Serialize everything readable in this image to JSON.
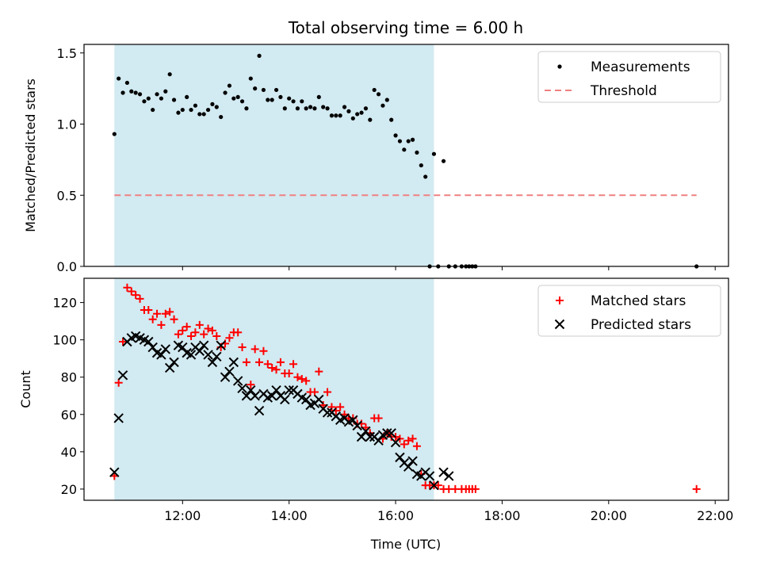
{
  "chart_data": {
    "title": "Total observing time = 6.00 h",
    "xlabel": "Time (UTC)",
    "x_unit": "hours (UTC)",
    "xlim": [
      10.15,
      22.25
    ],
    "xticks": [
      {
        "value": 12,
        "label": "12:00"
      },
      {
        "value": 14,
        "label": "14:00"
      },
      {
        "value": 16,
        "label": "16:00"
      },
      {
        "value": 18,
        "label": "18:00"
      },
      {
        "value": 20,
        "label": "20:00"
      },
      {
        "value": 22,
        "label": "22:00"
      }
    ],
    "observing_window": {
      "start": 10.72,
      "end": 16.72,
      "color": "#add8e6"
    },
    "panels": [
      {
        "type": "scatter",
        "ylabel": "Matched/Predicted stars",
        "ylim": [
          0,
          1.56
        ],
        "yticks": [
          {
            "value": 0,
            "label": "0.0"
          },
          {
            "value": 0.5,
            "label": "0.5"
          },
          {
            "value": 1.0,
            "label": "1.0"
          },
          {
            "value": 1.5,
            "label": "1.5"
          }
        ],
        "legend_position": "top-right",
        "series": [
          {
            "name": "Measurements",
            "marker": "dot",
            "color": "#000000",
            "x": [
              10.72,
              10.8,
              10.88,
              10.96,
              11.04,
              11.12,
              11.2,
              11.28,
              11.36,
              11.44,
              11.52,
              11.6,
              11.68,
              11.76,
              11.84,
              11.92,
              12.0,
              12.08,
              12.16,
              12.24,
              12.32,
              12.4,
              12.48,
              12.56,
              12.64,
              12.72,
              12.8,
              12.88,
              12.96,
              13.04,
              13.12,
              13.2,
              13.28,
              13.36,
              13.44,
              13.52,
              13.6,
              13.68,
              13.76,
              13.84,
              13.92,
              14.0,
              14.08,
              14.16,
              14.24,
              14.32,
              14.4,
              14.48,
              14.56,
              14.64,
              14.72,
              14.8,
              14.88,
              14.96,
              15.04,
              15.12,
              15.2,
              15.28,
              15.36,
              15.44,
              15.52,
              15.6,
              15.68,
              15.76,
              15.84,
              15.92,
              16.0,
              16.08,
              16.16,
              16.24,
              16.32,
              16.4,
              16.48,
              16.56,
              16.64,
              16.72,
              16.8,
              16.9,
              17.0,
              17.12,
              17.24,
              17.32,
              17.38,
              17.44,
              17.5,
              21.65
            ],
            "y": [
              0.93,
              1.32,
              1.22,
              1.29,
              1.23,
              1.22,
              1.21,
              1.16,
              1.18,
              1.1,
              1.21,
              1.18,
              1.23,
              1.35,
              1.17,
              1.08,
              1.1,
              1.19,
              1.1,
              1.13,
              1.07,
              1.07,
              1.1,
              1.14,
              1.12,
              1.05,
              1.22,
              1.27,
              1.18,
              1.19,
              1.16,
              1.11,
              1.32,
              1.25,
              1.48,
              1.24,
              1.17,
              1.17,
              1.24,
              1.19,
              1.11,
              1.18,
              1.16,
              1.11,
              1.16,
              1.11,
              1.12,
              1.11,
              1.19,
              1.12,
              1.11,
              1.06,
              1.06,
              1.06,
              1.12,
              1.09,
              1.04,
              1.07,
              1.08,
              1.11,
              1.03,
              1.24,
              1.21,
              1.13,
              1.17,
              1.03,
              0.92,
              0.88,
              0.82,
              0.88,
              0.89,
              0.8,
              0.71,
              0.63,
              0.0,
              0.79,
              0.0,
              0.74,
              0.0,
              0.0,
              0.0,
              0.0,
              0.0,
              0.0,
              0.0,
              0.0
            ]
          },
          {
            "name": "Threshold",
            "type": "line",
            "style": "dashed",
            "color": "#f08080",
            "x": [
              10.72,
              21.65
            ],
            "y": [
              0.5,
              0.5
            ]
          }
        ]
      },
      {
        "type": "scatter",
        "ylabel": "Count",
        "ylim": [
          14,
          133
        ],
        "yticks": [
          {
            "value": 20,
            "label": "20"
          },
          {
            "value": 40,
            "label": "40"
          },
          {
            "value": 60,
            "label": "60"
          },
          {
            "value": 80,
            "label": "80"
          },
          {
            "value": 100,
            "label": "100"
          },
          {
            "value": 120,
            "label": "120"
          }
        ],
        "legend_position": "top-right",
        "series": [
          {
            "name": "Matched stars",
            "marker": "plus",
            "color": "#ff0000",
            "x": [
              10.72,
              10.8,
              10.88,
              10.96,
              11.04,
              11.12,
              11.2,
              11.28,
              11.36,
              11.44,
              11.52,
              11.6,
              11.68,
              11.76,
              11.84,
              11.92,
              12.0,
              12.08,
              12.16,
              12.24,
              12.32,
              12.4,
              12.48,
              12.56,
              12.64,
              12.72,
              12.8,
              12.88,
              12.96,
              13.04,
              13.12,
              13.2,
              13.28,
              13.36,
              13.44,
              13.52,
              13.6,
              13.68,
              13.76,
              13.84,
              13.92,
              14.0,
              14.08,
              14.16,
              14.24,
              14.32,
              14.4,
              14.48,
              14.56,
              14.64,
              14.72,
              14.8,
              14.88,
              14.96,
              15.04,
              15.12,
              15.2,
              15.28,
              15.36,
              15.44,
              15.52,
              15.6,
              15.68,
              15.76,
              15.84,
              15.92,
              16.0,
              16.08,
              16.16,
              16.24,
              16.32,
              16.4,
              16.48,
              16.56,
              16.64,
              16.72,
              16.8,
              16.9,
              17.0,
              17.12,
              17.24,
              17.32,
              17.38,
              17.44,
              17.5,
              21.65
            ],
            "y": [
              27,
              77,
              99,
              128,
              126,
              124,
              122,
              116,
              116,
              111,
              114,
              108,
              114,
              115,
              111,
              103,
              105,
              107,
              102,
              104,
              108,
              103,
              106,
              105,
              102,
              96,
              98,
              101,
              104,
              104,
              96,
              88,
              76,
              95,
              88,
              94,
              87,
              85,
              84,
              88,
              82,
              82,
              87,
              80,
              79,
              78,
              72,
              72,
              83,
              65,
              72,
              64,
              62,
              64,
              60,
              58,
              58,
              55,
              55,
              53,
              50,
              58,
              58,
              47,
              50,
              48,
              48,
              47,
              44,
              46,
              47,
              43,
              28,
              22,
              22,
              22,
              22,
              20,
              20,
              20,
              20,
              20,
              20,
              20,
              20,
              20
            ]
          },
          {
            "name": "Predicted stars",
            "marker": "x",
            "color": "#000000",
            "x": [
              10.72,
              10.8,
              10.88,
              10.96,
              11.04,
              11.12,
              11.2,
              11.28,
              11.36,
              11.44,
              11.52,
              11.6,
              11.68,
              11.76,
              11.84,
              11.92,
              12.0,
              12.08,
              12.16,
              12.24,
              12.32,
              12.4,
              12.48,
              12.56,
              12.64,
              12.72,
              12.8,
              12.88,
              12.96,
              13.04,
              13.12,
              13.2,
              13.28,
              13.36,
              13.44,
              13.52,
              13.6,
              13.68,
              13.76,
              13.84,
              13.92,
              14.0,
              14.08,
              14.16,
              14.24,
              14.32,
              14.4,
              14.48,
              14.56,
              14.64,
              14.72,
              14.8,
              14.88,
              14.96,
              15.04,
              15.12,
              15.2,
              15.28,
              15.36,
              15.44,
              15.52,
              15.6,
              15.68,
              15.76,
              15.84,
              15.92,
              16.0,
              16.08,
              16.16,
              16.24,
              16.32,
              16.4,
              16.48,
              16.56,
              16.64,
              16.72,
              16.9,
              17.0
            ],
            "y": [
              29,
              58,
              81,
              99,
              101,
              102,
              101,
              100,
              99,
              96,
              93,
              92,
              95,
              85,
              88,
              97,
              96,
              93,
              92,
              96,
              94,
              97,
              92,
              88,
              91,
              97,
              80,
              83,
              88,
              78,
              74,
              70,
              73,
              70,
              62,
              71,
              69,
              70,
              73,
              70,
              68,
              73,
              73,
              71,
              69,
              68,
              65,
              66,
              68,
              63,
              61,
              61,
              59,
              57,
              58,
              56,
              57,
              54,
              48,
              51,
              48,
              48,
              46,
              49,
              50,
              50,
              45,
              37,
              34,
              32,
              35,
              28,
              27,
              29,
              27,
              22,
              29,
              27
            ]
          }
        ]
      }
    ]
  }
}
